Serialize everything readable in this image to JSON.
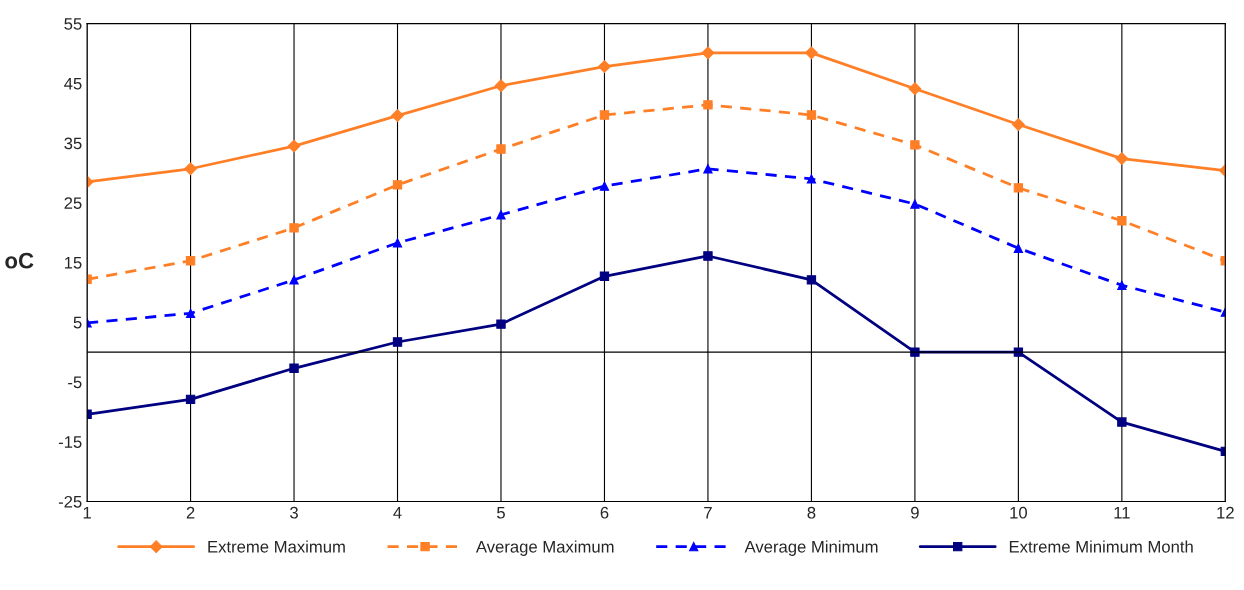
{
  "chart_data": {
    "type": "line",
    "ylabel": "oC",
    "x": [
      1,
      2,
      3,
      4,
      5,
      6,
      7,
      8,
      9,
      10,
      11,
      12
    ],
    "xlim": [
      1,
      12
    ],
    "xticks": [
      1,
      2,
      3,
      4,
      5,
      6,
      7,
      8,
      9,
      10,
      11,
      12
    ],
    "ylim": [
      -25,
      55
    ],
    "yticks": [
      -25,
      -15,
      -5,
      5,
      15,
      25,
      35,
      45,
      55
    ],
    "grid": "x",
    "legend": "bottom",
    "ref_lines": [
      {
        "axis": "y",
        "value": 0,
        "color": "#000000"
      }
    ],
    "series": [
      {
        "name": "Extreme Maximum",
        "color": "#ff7f27",
        "marker": "diamond",
        "line_style": "solid",
        "values": [
          28.5,
          30.7,
          34.5,
          39.6,
          44.6,
          47.8,
          50.1,
          50.1,
          44.1,
          38.1,
          32.4,
          30.4
        ]
      },
      {
        "name": "Average Maximum",
        "color": "#ff7f27",
        "marker": "square",
        "line_style": "dashed",
        "values": [
          12.2,
          15.3,
          20.8,
          28.0,
          34.0,
          39.7,
          41.4,
          39.7,
          34.7,
          27.5,
          22.0,
          15.3
        ]
      },
      {
        "name": "Average Minimum",
        "color": "#0000ff",
        "marker": "triangle",
        "line_style": "dashed",
        "values": [
          4.9,
          6.5,
          12.1,
          18.3,
          23.0,
          27.8,
          30.7,
          29.0,
          24.8,
          17.4,
          11.2,
          6.7
        ]
      },
      {
        "name": "Extreme Minimum Month",
        "color": "#000080",
        "marker": "square",
        "line_style": "solid",
        "values": [
          -10.4,
          -7.9,
          -2.7,
          1.7,
          4.7,
          12.7,
          16.1,
          12.1,
          0,
          0,
          -11.7,
          -16.6
        ]
      }
    ]
  }
}
